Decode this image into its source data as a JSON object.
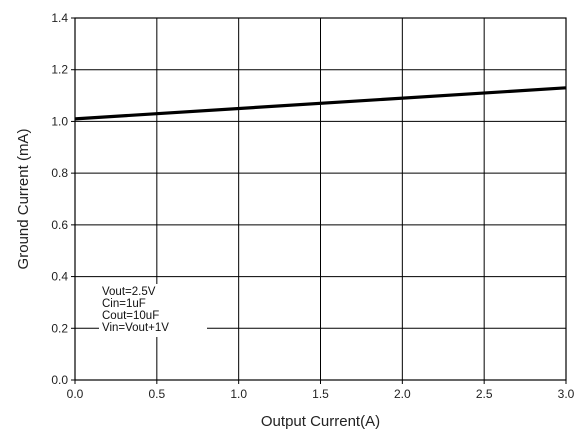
{
  "chart_data": {
    "type": "line",
    "xlabel": "Output Current(A)",
    "ylabel": "Ground Current (mA)",
    "xlim": [
      0,
      3.0
    ],
    "ylim": [
      0,
      1.4
    ],
    "x_ticks": [
      "0.0",
      "0.5",
      "1.0",
      "1.5",
      "2.0",
      "2.5",
      "3.0"
    ],
    "y_ticks": [
      "0.0",
      "0.2",
      "0.4",
      "0.6",
      "0.8",
      "1.0",
      "1.2",
      "1.4"
    ],
    "grid": true,
    "legend": "none",
    "series": [
      {
        "x": [
          0,
          3.0
        ],
        "y": [
          1.01,
          1.13
        ],
        "color": "#000000"
      }
    ],
    "annotation": {
      "placement": "bottom-left",
      "lines": [
        "Vout=2.5V",
        "Cin=1uF",
        "Cout=10uF",
        "Vin=Vout+1V"
      ]
    }
  }
}
